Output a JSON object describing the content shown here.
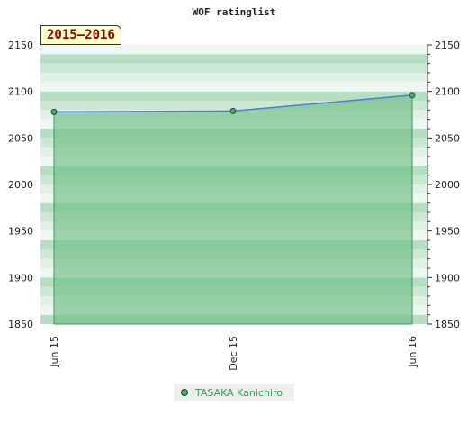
{
  "chart_data": {
    "type": "area",
    "title": "WOF ratinglist",
    "period_label": "2015–2016",
    "xlabel": "",
    "ylabel": "",
    "ylim": [
      1850,
      2150
    ],
    "yticks": [
      1850,
      1900,
      1950,
      2000,
      2050,
      2100,
      2150
    ],
    "x_ticks": [
      "Jun 15",
      "Dec 15",
      "Jun 16"
    ],
    "series": [
      {
        "name": "TASAKA Kanichiro",
        "points": [
          {
            "x": "Jun 15",
            "y": 2078
          },
          {
            "x": "Dec 15",
            "y": 2079
          },
          {
            "x": "Jun 16",
            "y": 2096
          }
        ]
      }
    ],
    "grid": true,
    "legend_position": "bottom"
  },
  "colors": {
    "fill": "#6fbf86",
    "line": "#4a7fd6",
    "band_light": "#e8f4ec",
    "band_dark": "#b5dec2",
    "marker": "#4fa86a"
  }
}
